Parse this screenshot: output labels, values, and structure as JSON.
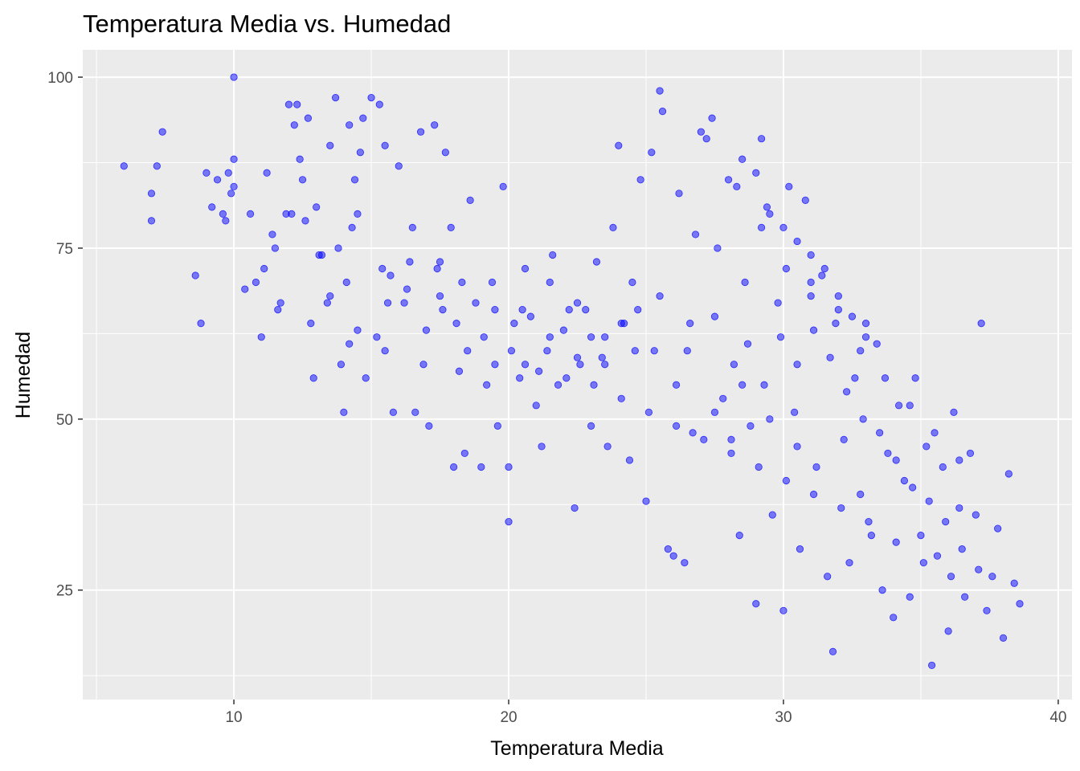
{
  "chart_data": {
    "type": "scatter",
    "title": "Temperatura Media vs. Humedad",
    "xlabel": "Temperatura Media",
    "ylabel": "Humedad",
    "xlim": [
      4.5,
      40.5
    ],
    "ylim": [
      9,
      104
    ],
    "x_ticks": [
      10,
      20,
      30,
      40
    ],
    "x_tick_labels": [
      "10",
      "20",
      "30",
      "40"
    ],
    "x_minor_ticks": [
      5,
      15,
      25,
      35
    ],
    "y_ticks": [
      25,
      50,
      75,
      100
    ],
    "y_tick_labels": [
      "25",
      "50",
      "75",
      "100"
    ],
    "y_minor_ticks": [
      12.5,
      37.5,
      62.5,
      87.5
    ],
    "grid": true,
    "panel_color": "#ebebeb",
    "grid_color": "#ffffff",
    "point_color": "#0000ff",
    "point_alpha": 0.5,
    "legend": "none",
    "series": [
      {
        "points": [
          [
            6.0,
            87
          ],
          [
            7.0,
            83
          ],
          [
            7.0,
            79
          ],
          [
            7.2,
            87
          ],
          [
            7.4,
            92
          ],
          [
            8.6,
            71
          ],
          [
            8.8,
            64
          ],
          [
            9.0,
            86
          ],
          [
            9.2,
            81
          ],
          [
            9.4,
            85
          ],
          [
            9.6,
            80
          ],
          [
            9.7,
            79
          ],
          [
            9.8,
            86
          ],
          [
            10.0,
            100
          ],
          [
            10.0,
            88
          ],
          [
            10.0,
            84
          ],
          [
            9.9,
            83
          ],
          [
            10.4,
            69
          ],
          [
            10.6,
            80
          ],
          [
            10.8,
            70
          ],
          [
            11.0,
            62
          ],
          [
            11.1,
            72
          ],
          [
            11.2,
            86
          ],
          [
            11.4,
            77
          ],
          [
            11.6,
            66
          ],
          [
            11.7,
            67
          ],
          [
            11.9,
            80
          ],
          [
            12.0,
            96
          ],
          [
            12.2,
            93
          ],
          [
            12.3,
            96
          ],
          [
            12.4,
            88
          ],
          [
            12.6,
            79
          ],
          [
            12.7,
            94
          ],
          [
            12.8,
            64
          ],
          [
            12.9,
            56
          ],
          [
            13.0,
            81
          ],
          [
            13.2,
            74
          ],
          [
            13.4,
            67
          ],
          [
            13.5,
            90
          ],
          [
            13.7,
            97
          ],
          [
            13.8,
            75
          ],
          [
            13.9,
            58
          ],
          [
            14.0,
            51
          ],
          [
            14.1,
            70
          ],
          [
            14.2,
            93
          ],
          [
            14.4,
            85
          ],
          [
            14.5,
            63
          ],
          [
            14.6,
            89
          ],
          [
            14.7,
            94
          ],
          [
            14.8,
            56
          ],
          [
            15.0,
            97
          ],
          [
            15.2,
            62
          ],
          [
            15.3,
            96
          ],
          [
            15.5,
            60
          ],
          [
            15.7,
            71
          ],
          [
            15.8,
            51
          ],
          [
            16.0,
            87
          ],
          [
            16.2,
            67
          ],
          [
            16.4,
            73
          ],
          [
            16.6,
            51
          ],
          [
            16.8,
            92
          ],
          [
            17.0,
            63
          ],
          [
            17.1,
            49
          ],
          [
            17.3,
            93
          ],
          [
            17.5,
            73
          ],
          [
            17.7,
            89
          ],
          [
            17.9,
            78
          ],
          [
            18.0,
            43
          ],
          [
            18.2,
            57
          ],
          [
            18.4,
            45
          ],
          [
            18.6,
            82
          ],
          [
            18.8,
            67
          ],
          [
            19.0,
            43
          ],
          [
            19.2,
            55
          ],
          [
            19.4,
            70
          ],
          [
            19.6,
            49
          ],
          [
            19.8,
            84
          ],
          [
            20.0,
            35
          ],
          [
            20.0,
            43
          ],
          [
            20.2,
            64
          ],
          [
            20.4,
            56
          ],
          [
            20.6,
            72
          ],
          [
            20.8,
            65
          ],
          [
            21.0,
            52
          ],
          [
            21.2,
            46
          ],
          [
            21.4,
            60
          ],
          [
            21.6,
            74
          ],
          [
            21.8,
            55
          ],
          [
            22.0,
            63
          ],
          [
            22.2,
            66
          ],
          [
            22.4,
            37
          ],
          [
            22.6,
            58
          ],
          [
            22.8,
            66
          ],
          [
            23.0,
            49
          ],
          [
            23.2,
            73
          ],
          [
            23.4,
            59
          ],
          [
            23.6,
            46
          ],
          [
            23.8,
            78
          ],
          [
            24.0,
            90
          ],
          [
            24.2,
            64
          ],
          [
            24.4,
            44
          ],
          [
            24.6,
            60
          ],
          [
            24.8,
            85
          ],
          [
            25.0,
            38
          ],
          [
            25.2,
            89
          ],
          [
            25.5,
            98
          ],
          [
            25.6,
            95
          ],
          [
            25.8,
            31
          ],
          [
            26.0,
            30
          ],
          [
            26.2,
            83
          ],
          [
            26.4,
            29
          ],
          [
            26.6,
            64
          ],
          [
            26.8,
            77
          ],
          [
            27.0,
            92
          ],
          [
            27.2,
            91
          ],
          [
            27.4,
            94
          ],
          [
            27.6,
            75
          ],
          [
            27.8,
            53
          ],
          [
            28.0,
            85
          ],
          [
            28.2,
            58
          ],
          [
            28.4,
            33
          ],
          [
            28.6,
            70
          ],
          [
            28.8,
            49
          ],
          [
            29.0,
            23
          ],
          [
            29.2,
            91
          ],
          [
            29.4,
            81
          ],
          [
            29.6,
            36
          ],
          [
            29.8,
            67
          ],
          [
            30.0,
            22
          ],
          [
            30.2,
            84
          ],
          [
            30.4,
            51
          ],
          [
            30.6,
            31
          ],
          [
            30.8,
            82
          ],
          [
            31.0,
            70
          ],
          [
            31.2,
            43
          ],
          [
            31.4,
            71
          ],
          [
            31.6,
            27
          ],
          [
            31.8,
            16
          ],
          [
            32.0,
            66
          ],
          [
            32.2,
            47
          ],
          [
            32.4,
            29
          ],
          [
            32.6,
            56
          ],
          [
            32.8,
            39
          ],
          [
            33.0,
            64
          ],
          [
            33.2,
            33
          ],
          [
            33.4,
            61
          ],
          [
            33.6,
            25
          ],
          [
            33.8,
            45
          ],
          [
            34.0,
            21
          ],
          [
            34.2,
            52
          ],
          [
            34.4,
            41
          ],
          [
            34.6,
            24
          ],
          [
            34.8,
            56
          ],
          [
            35.0,
            33
          ],
          [
            35.2,
            46
          ],
          [
            35.4,
            14
          ],
          [
            35.6,
            30
          ],
          [
            35.8,
            43
          ],
          [
            36.0,
            19
          ],
          [
            36.2,
            51
          ],
          [
            36.4,
            37
          ],
          [
            36.6,
            24
          ],
          [
            36.8,
            45
          ],
          [
            37.0,
            36
          ],
          [
            37.2,
            64
          ],
          [
            37.4,
            22
          ],
          [
            37.6,
            27
          ],
          [
            37.8,
            34
          ],
          [
            38.0,
            18
          ],
          [
            38.2,
            42
          ],
          [
            38.4,
            26
          ],
          [
            38.6,
            23
          ],
          [
            14.2,
            61
          ],
          [
            15.6,
            67
          ],
          [
            16.9,
            58
          ],
          [
            17.6,
            66
          ],
          [
            18.3,
            70
          ],
          [
            19.5,
            66
          ],
          [
            20.6,
            58
          ],
          [
            21.5,
            62
          ],
          [
            22.5,
            59
          ],
          [
            23.0,
            62
          ],
          [
            23.5,
            58
          ],
          [
            24.1,
            64
          ],
          [
            24.7,
            66
          ],
          [
            25.3,
            60
          ],
          [
            26.1,
            55
          ],
          [
            26.7,
            48
          ],
          [
            27.5,
            51
          ],
          [
            28.1,
            47
          ],
          [
            28.7,
            61
          ],
          [
            29.3,
            55
          ],
          [
            29.9,
            62
          ],
          [
            30.5,
            58
          ],
          [
            31.1,
            63
          ],
          [
            31.7,
            59
          ],
          [
            32.3,
            54
          ],
          [
            32.9,
            50
          ],
          [
            33.5,
            48
          ],
          [
            34.1,
            44
          ],
          [
            34.7,
            40
          ],
          [
            35.3,
            38
          ],
          [
            35.9,
            35
          ],
          [
            36.5,
            31
          ],
          [
            37.1,
            28
          ],
          [
            12.1,
            80
          ],
          [
            13.1,
            74
          ],
          [
            14.3,
            78
          ],
          [
            15.4,
            72
          ],
          [
            16.3,
            69
          ],
          [
            17.4,
            72
          ],
          [
            18.1,
            64
          ],
          [
            19.1,
            62
          ],
          [
            20.1,
            60
          ],
          [
            21.1,
            57
          ],
          [
            22.1,
            56
          ],
          [
            23.1,
            55
          ],
          [
            24.1,
            53
          ],
          [
            25.1,
            51
          ],
          [
            26.1,
            49
          ],
          [
            27.1,
            47
          ],
          [
            28.1,
            45
          ],
          [
            29.1,
            43
          ],
          [
            30.1,
            41
          ],
          [
            31.1,
            39
          ],
          [
            32.1,
            37
          ],
          [
            33.1,
            35
          ],
          [
            34.1,
            32
          ],
          [
            35.1,
            29
          ],
          [
            36.1,
            27
          ],
          [
            28.5,
            88
          ],
          [
            29.0,
            86
          ],
          [
            29.5,
            80
          ],
          [
            30.0,
            78
          ],
          [
            30.5,
            76
          ],
          [
            31.0,
            74
          ],
          [
            31.5,
            72
          ],
          [
            32.0,
            68
          ],
          [
            32.5,
            65
          ],
          [
            33.0,
            62
          ],
          [
            28.3,
            84
          ],
          [
            29.2,
            78
          ],
          [
            30.1,
            72
          ],
          [
            31.0,
            68
          ],
          [
            31.9,
            64
          ],
          [
            32.8,
            60
          ],
          [
            33.7,
            56
          ],
          [
            34.6,
            52
          ],
          [
            35.5,
            48
          ],
          [
            36.4,
            44
          ],
          [
            11.5,
            75
          ],
          [
            12.5,
            85
          ],
          [
            13.5,
            68
          ],
          [
            14.5,
            80
          ],
          [
            15.5,
            90
          ],
          [
            16.5,
            78
          ],
          [
            17.5,
            68
          ],
          [
            18.5,
            60
          ],
          [
            19.5,
            58
          ],
          [
            20.5,
            66
          ],
          [
            21.5,
            70
          ],
          [
            22.5,
            67
          ],
          [
            23.5,
            62
          ],
          [
            24.5,
            70
          ],
          [
            25.5,
            68
          ],
          [
            26.5,
            60
          ],
          [
            27.5,
            65
          ],
          [
            28.5,
            55
          ],
          [
            29.5,
            50
          ],
          [
            30.5,
            46
          ]
        ]
      }
    ]
  }
}
